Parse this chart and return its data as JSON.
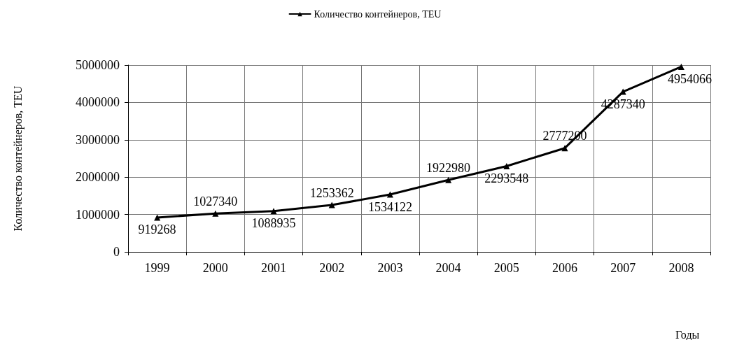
{
  "chart_data": {
    "type": "line",
    "xlabel": "Годы",
    "ylabel": "Количество контейнеров, TEU",
    "categories": [
      "1999",
      "2000",
      "2001",
      "2002",
      "2003",
      "2004",
      "2005",
      "2006",
      "2007",
      "2008"
    ],
    "series": [
      {
        "name": "Количество контейнеров, TEU",
        "color": "#000000",
        "values": [
          919268,
          1027340,
          1088935,
          1253362,
          1534122,
          1922980,
          2293548,
          2777200,
          4287340,
          4954066
        ]
      }
    ],
    "ylim": [
      0,
      5000000
    ],
    "yticks": [
      0,
      1000000,
      2000000,
      3000000,
      4000000,
      5000000
    ],
    "grid": true,
    "legend": "top",
    "marker": "triangle",
    "line_style": "solid",
    "data_labels": true
  }
}
